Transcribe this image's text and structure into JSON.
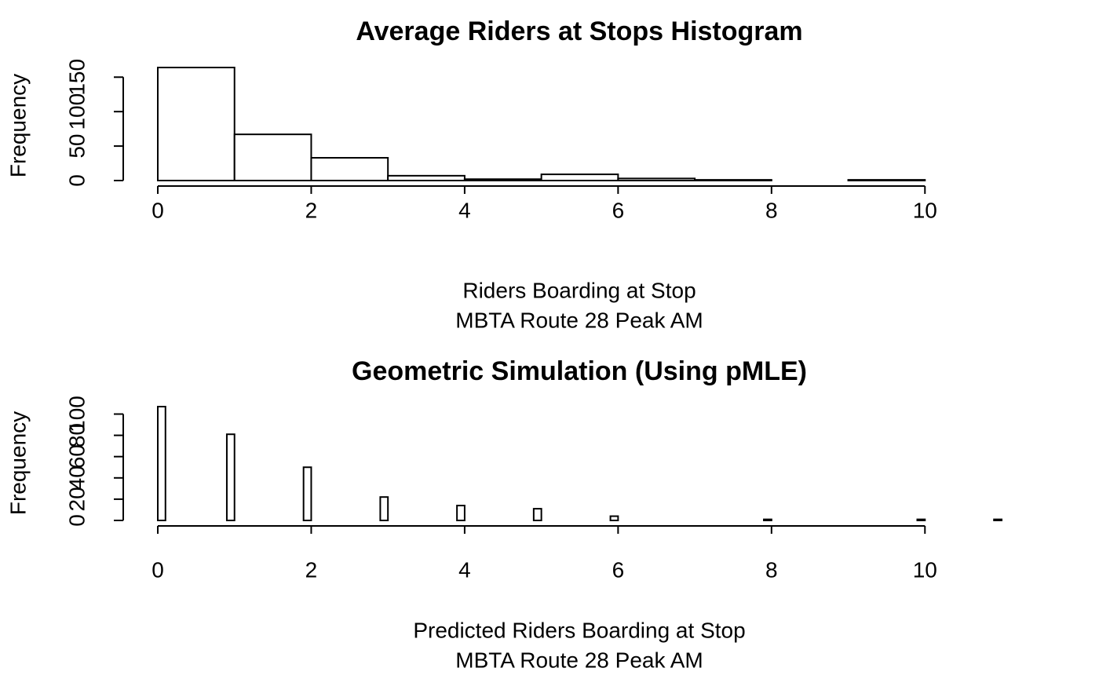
{
  "chart_data": [
    {
      "type": "histogram",
      "title": "Average Riders at Stops Histogram",
      "xlabel": [
        "Riders Boarding at Stop",
        "MBTA Route 28 Peak AM"
      ],
      "ylabel": "Frequency",
      "bins": [
        0,
        1,
        2,
        3,
        4,
        5,
        6,
        7,
        8,
        9,
        10,
        11
      ],
      "counts": [
        164,
        67,
        33,
        7,
        2,
        9,
        3,
        1,
        0,
        1,
        0
      ],
      "xlim": [
        0,
        11
      ],
      "xticks": [
        0,
        2,
        4,
        6,
        8,
        10
      ],
      "ylim": [
        0,
        164
      ],
      "yticks": [
        0,
        50,
        100,
        150
      ],
      "color": "#ffffff"
    },
    {
      "type": "histogram",
      "title": "Geometric Simulation (Using pMLE)",
      "xlabel": [
        "Predicted Riders Boarding at Stop",
        "MBTA Route 28 Peak AM"
      ],
      "ylabel": "Frequency",
      "bins": [
        0,
        0.1,
        0.2,
        0.3,
        0.4,
        0.5,
        0.6,
        0.7,
        0.8,
        0.9,
        1,
        1.1,
        1.2,
        1.3,
        1.4,
        1.5,
        1.6,
        1.7,
        1.8,
        1.9,
        2,
        2.1,
        2.2,
        2.3,
        2.4,
        2.5,
        2.6,
        2.7,
        2.8,
        2.9,
        3,
        3.1,
        3.2,
        3.3,
        3.4,
        3.5,
        3.6,
        3.7,
        3.8,
        3.9,
        4,
        4.1,
        4.2,
        4.3,
        4.4,
        4.5,
        4.6,
        4.7,
        4.8,
        4.9,
        5,
        5.1,
        5.2,
        5.3,
        5.4,
        5.5,
        5.6,
        5.7,
        5.8,
        5.9,
        6,
        6.1,
        6.2,
        6.3,
        6.4,
        6.5,
        6.6,
        6.7,
        6.8,
        6.9,
        7,
        7.1,
        7.2,
        7.3,
        7.4,
        7.5,
        7.6,
        7.7,
        7.8,
        7.9,
        8,
        8.1,
        8.2,
        8.3,
        8.4,
        8.5,
        8.6,
        8.7,
        8.8,
        8.9,
        9,
        9.1,
        9.2,
        9.3,
        9.4,
        9.5,
        9.6,
        9.7,
        9.8,
        9.9,
        10,
        10.1,
        10.2,
        10.3,
        10.4,
        10.5,
        10.6,
        10.7,
        10.8,
        10.9,
        11
      ],
      "counts": [
        107,
        0,
        0,
        0,
        0,
        0,
        0,
        0,
        0,
        81,
        0,
        0,
        0,
        0,
        0,
        0,
        0,
        0,
        0,
        50,
        0,
        0,
        0,
        0,
        0,
        0,
        0,
        0,
        0,
        22,
        0,
        0,
        0,
        0,
        0,
        0,
        0,
        0,
        0,
        14,
        0,
        0,
        0,
        0,
        0,
        0,
        0,
        0,
        0,
        11,
        0,
        0,
        0,
        0,
        0,
        0,
        0,
        0,
        0,
        4,
        0,
        0,
        0,
        0,
        0,
        0,
        0,
        0,
        0,
        0,
        0,
        0,
        0,
        0,
        0,
        0,
        0,
        0,
        0,
        1,
        0,
        0,
        0,
        0,
        0,
        0,
        0,
        0,
        0,
        0,
        0,
        0,
        0,
        0,
        0,
        0,
        0,
        0,
        0,
        1,
        0,
        0,
        0,
        0,
        0,
        0,
        0,
        0,
        0,
        1
      ],
      "xlim": [
        0,
        11
      ],
      "xticks": [
        0,
        2,
        4,
        6,
        8,
        10
      ],
      "ylim": [
        0,
        107
      ],
      "yticks": [
        0,
        20,
        40,
        60,
        80,
        100
      ],
      "color": "#ffffff"
    }
  ]
}
